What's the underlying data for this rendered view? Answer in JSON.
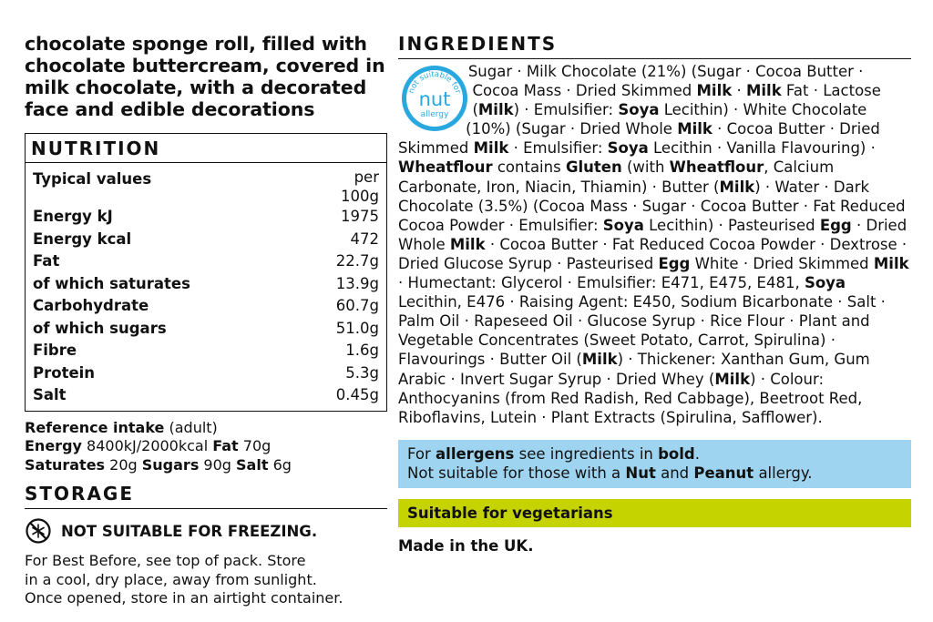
{
  "description": "chocolate sponge roll, filled with chocolate buttercream, covered in milk chocolate, with a decorated face and edible decorations",
  "nutrition": {
    "heading": "NUTRITION",
    "rows": [
      {
        "label": "Typical values",
        "value": "per\n100g"
      },
      {
        "label": "Energy kJ",
        "value": "1975"
      },
      {
        "label": "Energy kcal",
        "value": "472"
      },
      {
        "label": "Fat",
        "value": "22.7g"
      },
      {
        "label": "of which saturates",
        "value": "13.9g"
      },
      {
        "label": "Carbohydrate",
        "value": "60.7g"
      },
      {
        "label": "of which sugars",
        "value": "51.0g"
      },
      {
        "label": "Fibre",
        "value": "1.6g"
      },
      {
        "label": "Protein",
        "value": "5.3g"
      },
      {
        "label": "Salt",
        "value": "0.45g"
      }
    ]
  },
  "reference_intake": {
    "heading_bold": "Reference intake",
    "heading_rest": " (adult)",
    "energy_label": "Energy",
    "energy_value": " 8400kJ/2000kcal ",
    "fat_label": "Fat",
    "fat_value": " 70g",
    "saturates_label": "Saturates",
    "saturates_value": " 20g ",
    "sugars_label": "Sugars",
    "sugars_value": " 90g ",
    "salt_label": "Salt",
    "salt_value": " 6g"
  },
  "storage": {
    "heading": "STORAGE",
    "freeze_text": "NOT SUITABLE FOR FREEZING.",
    "freeze_icon": "no-freeze-icon",
    "line1": "For Best Before, see top of pack. Store",
    "line2": "in a cool, dry place, away from sunlight.",
    "line3": "Once opened, store in an airtight container."
  },
  "ingredients": {
    "heading": "INGREDIENTS",
    "badge": {
      "top": "not suitable for",
      "main": "nut",
      "bottom": "allergy",
      "color": "#29a8e0"
    },
    "segments": [
      {
        "t": "Sugar · Milk Chocolate (21%) (Sugar · Cocoa Butter · Cocoa Mass · Dried Skimmed ",
        "b": false
      },
      {
        "t": "Milk",
        "b": true
      },
      {
        "t": " · ",
        "b": false
      },
      {
        "t": "Milk",
        "b": true
      },
      {
        "t": " Fat · Lactose (",
        "b": false
      },
      {
        "t": "Milk",
        "b": true
      },
      {
        "t": ") · Emulsifier: ",
        "b": false
      },
      {
        "t": "Soya",
        "b": true
      },
      {
        "t": " Lecithin) · White Chocolate (10%) (Sugar · Dried Whole ",
        "b": false
      },
      {
        "t": "Milk",
        "b": true
      },
      {
        "t": " · Cocoa Butter · Dried Skimmed ",
        "b": false
      },
      {
        "t": "Milk",
        "b": true
      },
      {
        "t": " · Emulsifier: ",
        "b": false
      },
      {
        "t": "Soya",
        "b": true
      },
      {
        "t": " Lecithin · Vanilla Flavouring) · ",
        "b": false
      },
      {
        "t": "Wheatflour",
        "b": true
      },
      {
        "t": " contains ",
        "b": false
      },
      {
        "t": "Gluten",
        "b": true
      },
      {
        "t": " (with ",
        "b": false
      },
      {
        "t": "Wheatflour",
        "b": true
      },
      {
        "t": ", Calcium Carbonate, Iron, Niacin, Thiamin) · Butter (",
        "b": false
      },
      {
        "t": "Milk",
        "b": true
      },
      {
        "t": ") · Water · Dark Chocolate (3.5%) (Cocoa Mass · Sugar · Cocoa Butter · Fat Reduced Cocoa Powder · Emulsifier: ",
        "b": false
      },
      {
        "t": "Soya",
        "b": true
      },
      {
        "t": " Lecithin) · Pasteurised ",
        "b": false
      },
      {
        "t": "Egg",
        "b": true
      },
      {
        "t": " · Dried Whole ",
        "b": false
      },
      {
        "t": "Milk",
        "b": true
      },
      {
        "t": " · Cocoa Butter · Fat Reduced Cocoa Powder · Dextrose · Dried Glucose Syrup · Pasteurised ",
        "b": false
      },
      {
        "t": "Egg",
        "b": true
      },
      {
        "t": " White · Dried Skimmed ",
        "b": false
      },
      {
        "t": "Milk",
        "b": true
      },
      {
        "t": " · Humectant: Glycerol · Emulsifier: E471, E475, E481, ",
        "b": false
      },
      {
        "t": "Soya",
        "b": true
      },
      {
        "t": " Lecithin, E476 · Raising Agent: E450, Sodium Bicarbonate · Salt · Palm Oil · Rapeseed Oil · Glucose Syrup · Rice Flour · Plant and Vegetable Concentrates (Sweet Potato, Carrot, Spirulina) · Flavourings · Butter Oil (",
        "b": false
      },
      {
        "t": "Milk",
        "b": true
      },
      {
        "t": ") · Thickener: Xanthan Gum, Gum Arabic · Invert Sugar Syrup · Dried Whey (",
        "b": false
      },
      {
        "t": "Milk",
        "b": true
      },
      {
        "t": ") · Colour: Anthocyanins (from Red Radish, Red Cabbage), Beetroot Red, Riboflavins, Lutein · Plant Extracts (Spirulina, Safflower).",
        "b": false
      }
    ]
  },
  "allergens": {
    "l1_pre": "For ",
    "l1_bold": "allergens",
    "l1_mid": " see ingredients in ",
    "l1_bold2": "bold",
    "l1_end": ".",
    "l2_pre": "Not suitable for those with a ",
    "l2_bold": "Nut",
    "l2_mid": " and ",
    "l2_bold2": "Peanut",
    "l2_end": " allergy.",
    "color": "#9ed4f0"
  },
  "vegetarian": {
    "text": "Suitable for vegetarians",
    "color": "#c5d400"
  },
  "made_in": "Made in the UK."
}
